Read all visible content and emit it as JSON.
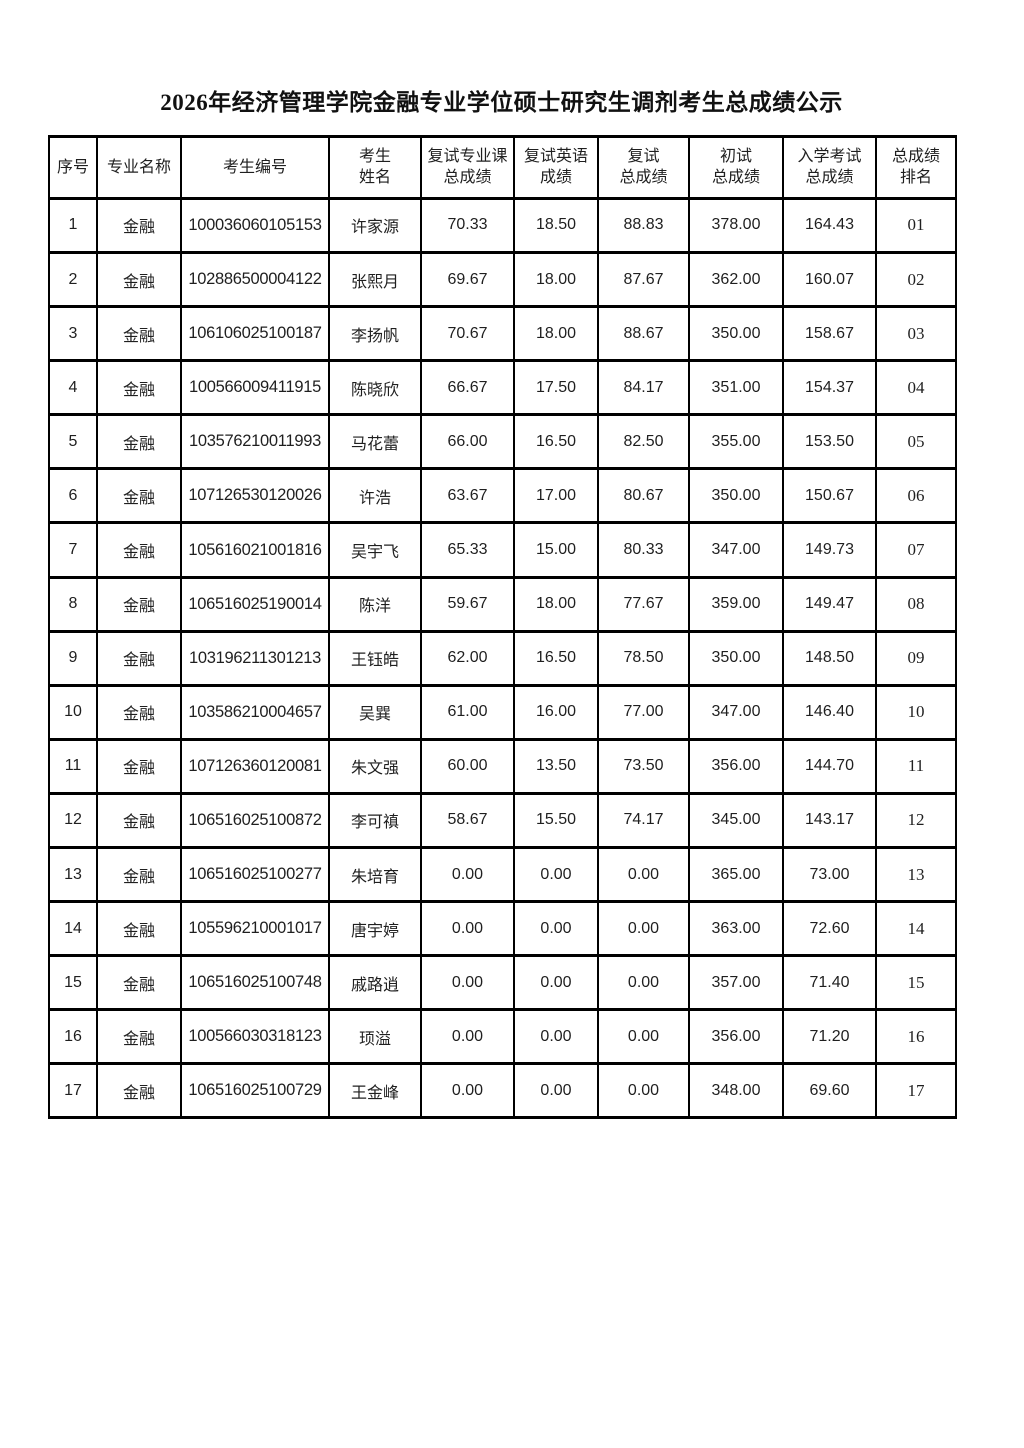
{
  "colors": {
    "background": "#ffffff",
    "text": "#1f1f1f",
    "border": "#000000"
  },
  "page": {
    "title": "2026年经济管理学院金融专业学位硕士研究生调剂考生总成绩公示"
  },
  "table": {
    "column_keys": [
      "no",
      "major",
      "candidate-id",
      "name",
      "retest-major-score",
      "retest-english-score",
      "retest-total",
      "initial-total",
      "entrance-total",
      "rank"
    ],
    "headers": [
      "序号",
      "专业名称",
      "考生编号",
      "考生\n姓名",
      "复试专业课\n总成绩",
      "复试英语\n成绩",
      "复试\n总成绩",
      "初试\n总成绩",
      "入学考试\n总成绩",
      "总成绩\n排名"
    ],
    "rows": [
      [
        "1",
        "金融",
        "100036060105153",
        "许家源",
        "70.33",
        "18.50",
        "88.83",
        "378.00",
        "164.43",
        "01"
      ],
      [
        "2",
        "金融",
        "102886500004122",
        "张熙月",
        "69.67",
        "18.00",
        "87.67",
        "362.00",
        "160.07",
        "02"
      ],
      [
        "3",
        "金融",
        "106106025100187",
        "李扬帆",
        "70.67",
        "18.00",
        "88.67",
        "350.00",
        "158.67",
        "03"
      ],
      [
        "4",
        "金融",
        "100566009411915",
        "陈晓欣",
        "66.67",
        "17.50",
        "84.17",
        "351.00",
        "154.37",
        "04"
      ],
      [
        "5",
        "金融",
        "103576210011993",
        "马花蕾",
        "66.00",
        "16.50",
        "82.50",
        "355.00",
        "153.50",
        "05"
      ],
      [
        "6",
        "金融",
        "107126530120026",
        "许浩",
        "63.67",
        "17.00",
        "80.67",
        "350.00",
        "150.67",
        "06"
      ],
      [
        "7",
        "金融",
        "105616021001816",
        "吴宇飞",
        "65.33",
        "15.00",
        "80.33",
        "347.00",
        "149.73",
        "07"
      ],
      [
        "8",
        "金融",
        "106516025190014",
        "陈洋",
        "59.67",
        "18.00",
        "77.67",
        "359.00",
        "149.47",
        "08"
      ],
      [
        "9",
        "金融",
        "103196211301213",
        "王钰皓",
        "62.00",
        "16.50",
        "78.50",
        "350.00",
        "148.50",
        "09"
      ],
      [
        "10",
        "金融",
        "103586210004657",
        "吴巽",
        "61.00",
        "16.00",
        "77.00",
        "347.00",
        "146.40",
        "10"
      ],
      [
        "11",
        "金融",
        "107126360120081",
        "朱文强",
        "60.00",
        "13.50",
        "73.50",
        "356.00",
        "144.70",
        "11"
      ],
      [
        "12",
        "金融",
        "106516025100872",
        "李可禛",
        "58.67",
        "15.50",
        "74.17",
        "345.00",
        "143.17",
        "12"
      ],
      [
        "13",
        "金融",
        "106516025100277",
        "朱培育",
        "0.00",
        "0.00",
        "0.00",
        "365.00",
        "73.00",
        "13"
      ],
      [
        "14",
        "金融",
        "105596210001017",
        "唐宇婷",
        "0.00",
        "0.00",
        "0.00",
        "363.00",
        "72.60",
        "14"
      ],
      [
        "15",
        "金融",
        "106516025100748",
        "戚路逍",
        "0.00",
        "0.00",
        "0.00",
        "357.00",
        "71.40",
        "15"
      ],
      [
        "16",
        "金融",
        "100566030318123",
        "顼溢",
        "0.00",
        "0.00",
        "0.00",
        "356.00",
        "71.20",
        "16"
      ],
      [
        "17",
        "金融",
        "106516025100729",
        "王金峰",
        "0.00",
        "0.00",
        "0.00",
        "348.00",
        "69.60",
        "17"
      ]
    ]
  }
}
